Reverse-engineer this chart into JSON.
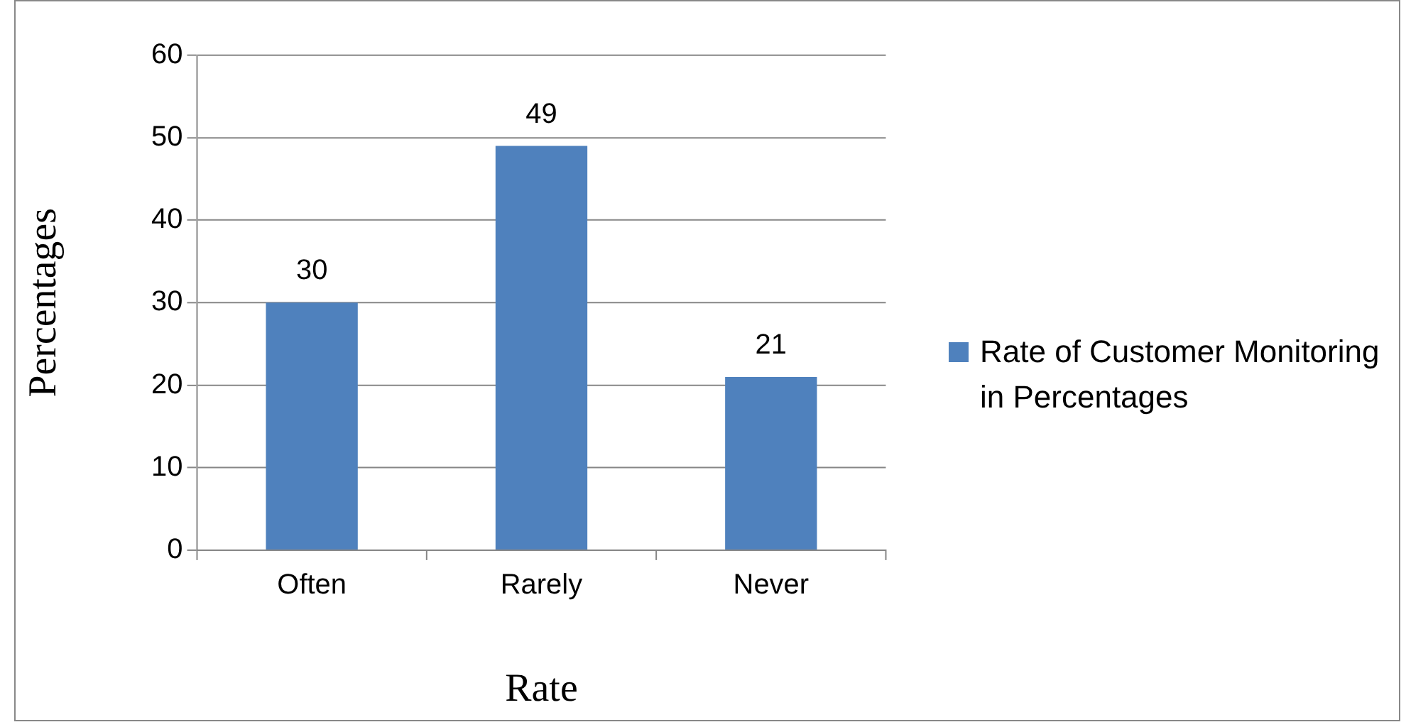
{
  "chart_data": {
    "type": "bar",
    "categories": [
      "Often",
      "Rarely",
      "Never"
    ],
    "series": [
      {
        "name": "Rate of Customer Monitoring in Percentages",
        "color": "#4f81bd",
        "values": [
          30,
          49,
          21
        ]
      }
    ],
    "xlabel": "Rate",
    "ylabel": "Percentages",
    "ylim": [
      0,
      60
    ],
    "yticks": [
      0,
      10,
      20,
      30,
      40,
      50,
      60
    ],
    "grid": "y",
    "legend": "right",
    "data_labels": true
  }
}
